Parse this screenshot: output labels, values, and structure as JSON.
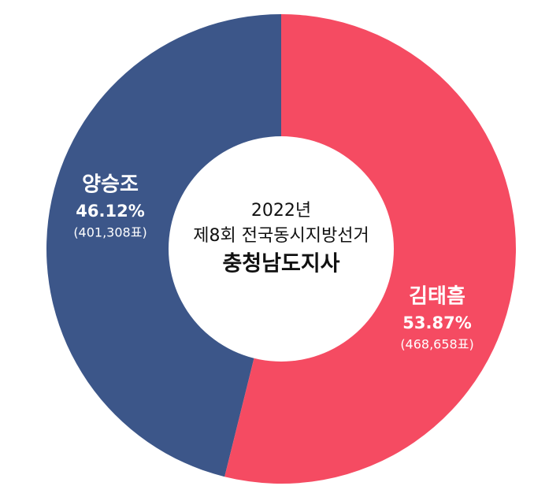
{
  "chart_data": {
    "type": "donut",
    "title_lines": [
      "2022년",
      "제8회 전국동시지방선거",
      "충청남도지사"
    ],
    "categories": [
      "양승조",
      "김태흠"
    ],
    "values": [
      46.12,
      53.87
    ],
    "value_labels": [
      "46.12%",
      "53.87%"
    ],
    "vote_labels": [
      "(401,308표)",
      "(468,658표)"
    ],
    "colors": [
      "#3c5689",
      "#f54b62"
    ]
  }
}
